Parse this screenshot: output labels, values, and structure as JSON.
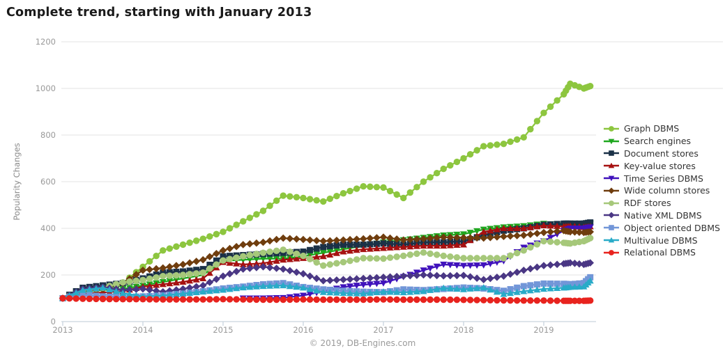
{
  "title": "Complete trend, starting with January 2013",
  "footer": "© 2019, DB-Engines.com",
  "axes": {
    "ylabel": "Popularity Changes"
  },
  "colors": {
    "grid": "#e3e3e3",
    "axis": "#c9d4de",
    "tick_text": "#999999",
    "title_text": "#1a1a1a"
  },
  "chart_data": {
    "type": "line",
    "title": "Complete trend, starting with January 2013",
    "xlabel": "",
    "ylabel": "Popularity Changes",
    "ylim": [
      0,
      1200
    ],
    "yticks": [
      0,
      200,
      400,
      600,
      800,
      1000,
      1200
    ],
    "year_ticks": [
      2013,
      2014,
      2015,
      2016,
      2017,
      2018,
      2019
    ],
    "grid": true,
    "legend_position": "right",
    "x": [
      2013.0,
      2013.25,
      2013.5,
      2013.75,
      2014.0,
      2014.25,
      2014.5,
      2014.75,
      2015.0,
      2015.25,
      2015.5,
      2015.75,
      2016.0,
      2016.25,
      2016.5,
      2016.75,
      2017.0,
      2017.25,
      2017.5,
      2017.75,
      2018.0,
      2018.25,
      2018.5,
      2018.75,
      2019.0,
      2019.25,
      2019.33,
      2019.5,
      2019.58
    ],
    "series": [
      {
        "name": "Graph DBMS",
        "color": "#8dc63f",
        "marker": "circle",
        "values": [
          100,
          125,
          140,
          165,
          235,
          305,
          330,
          355,
          385,
          430,
          475,
          540,
          530,
          515,
          550,
          580,
          575,
          530,
          600,
          655,
          700,
          752,
          762,
          790,
          895,
          975,
          1020,
          1000,
          1010
        ]
      },
      {
        "name": "Search engines",
        "color": "#1fa71f",
        "marker": "triangle-down",
        "values": [
          100,
          130,
          135,
          140,
          155,
          170,
          185,
          200,
          260,
          265,
          270,
          270,
          280,
          295,
          310,
          325,
          340,
          350,
          360,
          370,
          375,
          395,
          405,
          410,
          420,
          415,
          420,
          415,
          420
        ]
      },
      {
        "name": "Document stores",
        "color": "#1b3147",
        "marker": "square",
        "values": [
          100,
          145,
          155,
          165,
          185,
          210,
          215,
          225,
          280,
          285,
          290,
          295,
          300,
          320,
          330,
          330,
          335,
          330,
          340,
          340,
          345,
          370,
          390,
          400,
          415,
          420,
          420,
          420,
          425
        ]
      },
      {
        "name": "Key-value stores",
        "color": "#a61111",
        "marker": "triangle-up",
        "values": [
          100,
          120,
          125,
          130,
          150,
          160,
          170,
          185,
          255,
          245,
          250,
          265,
          272,
          280,
          300,
          310,
          315,
          320,
          325,
          325,
          330,
          385,
          400,
          400,
          412,
          408,
          410,
          405,
          408
        ]
      },
      {
        "name": "Time Series DBMS",
        "color": "#4012bc",
        "marker": "triangle-down",
        "values": [
          null,
          null,
          null,
          null,
          null,
          null,
          null,
          null,
          null,
          100,
          100,
          102,
          112,
          130,
          148,
          158,
          165,
          192,
          220,
          245,
          240,
          242,
          260,
          318,
          345,
          390,
          400,
          400,
          405
        ]
      },
      {
        "name": "Wide column stores",
        "color": "#6f3d0e",
        "marker": "diamond",
        "values": [
          100,
          130,
          140,
          165,
          220,
          230,
          245,
          265,
          305,
          330,
          340,
          358,
          352,
          345,
          350,
          355,
          362,
          350,
          355,
          362,
          360,
          358,
          365,
          370,
          382,
          390,
          385,
          382,
          385
        ]
      },
      {
        "name": "RDF stores",
        "color": "#a6c87a",
        "marker": "circle",
        "values": [
          100,
          135,
          145,
          168,
          178,
          195,
          200,
          210,
          262,
          280,
          295,
          308,
          282,
          240,
          255,
          272,
          270,
          282,
          296,
          282,
          272,
          272,
          272,
          305,
          345,
          338,
          335,
          345,
          358
        ]
      },
      {
        "name": "Native XML DBMS",
        "color": "#4a3784",
        "marker": "diamond",
        "values": [
          100,
          140,
          148,
          135,
          140,
          128,
          140,
          155,
          195,
          225,
          235,
          225,
          205,
          175,
          180,
          185,
          190,
          195,
          200,
          196,
          198,
          180,
          195,
          220,
          240,
          248,
          252,
          245,
          252
        ]
      },
      {
        "name": "Object oriented DBMS",
        "color": "#7296d8",
        "marker": "square",
        "values": [
          100,
          115,
          108,
          105,
          108,
          112,
          120,
          130,
          142,
          150,
          160,
          165,
          148,
          138,
          132,
          128,
          126,
          138,
          135,
          140,
          146,
          142,
          132,
          152,
          163,
          162,
          160,
          165,
          190
        ]
      },
      {
        "name": "Multivalue DBMS",
        "color": "#29abc8",
        "marker": "triangle-up",
        "values": [
          100,
          135,
          145,
          122,
          108,
          112,
          120,
          128,
          136,
          146,
          152,
          155,
          145,
          126,
          122,
          120,
          128,
          125,
          130,
          144,
          138,
          146,
          118,
          130,
          140,
          145,
          148,
          150,
          175
        ]
      },
      {
        "name": "Relational DBMS",
        "color": "#e8231e",
        "marker": "circle",
        "values": [
          100,
          98,
          97,
          96,
          96,
          95,
          95,
          95,
          96,
          95,
          94,
          94,
          95,
          94,
          94,
          94,
          95,
          94,
          94,
          94,
          93,
          92,
          91,
          90,
          90,
          89,
          89,
          89,
          90
        ]
      }
    ]
  }
}
